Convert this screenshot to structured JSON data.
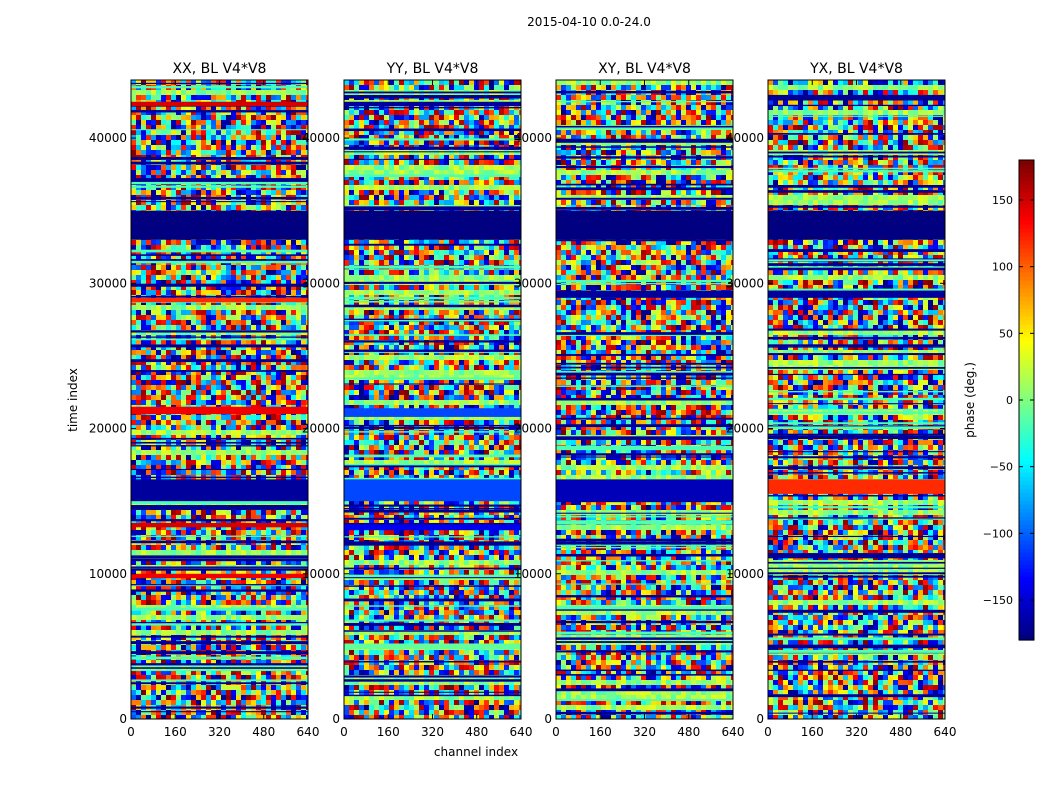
{
  "chart_data": {
    "type": "heatmap",
    "suptitle": "2015-04-10 0.0-24.0",
    "xlabel": "channel index",
    "ylabel": "time index",
    "xlim": [
      0,
      640
    ],
    "ylim": [
      0,
      44000
    ],
    "xticks": [
      0,
      160,
      320,
      480,
      640
    ],
    "yticks": [
      0,
      10000,
      20000,
      30000,
      40000
    ],
    "colorbar": {
      "label": "phase (deg.)",
      "range": [
        -180,
        180
      ],
      "ticks": [
        -150,
        -100,
        -50,
        0,
        50,
        100,
        150
      ],
      "tick_labels": [
        "−150",
        "−100",
        "−50",
        "0",
        "50",
        "100",
        "150"
      ],
      "colormap": "jet"
    },
    "panels": [
      {
        "title": "XX, BL V4*V8",
        "band_phases": [
          {
            "t0": 33000,
            "t1": 35000,
            "phase": -180
          },
          {
            "t0": 21500,
            "t1": 21000,
            "phase": 140
          },
          {
            "t0": 15000,
            "t1": 16500,
            "phase": -170
          },
          {
            "t0": 13200,
            "t1": 13500,
            "phase": 150
          },
          {
            "t0": 9700,
            "t1": 10000,
            "phase": 140
          },
          {
            "t0": 28700,
            "t1": 29000,
            "phase": 120
          },
          {
            "t0": 42200,
            "t1": 42500,
            "phase": 150
          }
        ]
      },
      {
        "title": "YY, BL V4*V8",
        "band_phases": [
          {
            "t0": 33000,
            "t1": 35000,
            "phase": -180
          },
          {
            "t0": 15000,
            "t1": 16500,
            "phase": -110
          },
          {
            "t0": 20800,
            "t1": 21400,
            "phase": -110
          },
          {
            "t0": 13000,
            "t1": 13400,
            "phase": -140
          },
          {
            "t0": 4800,
            "t1": 5200,
            "phase": -10
          },
          {
            "t0": 42200,
            "t1": 42500,
            "phase": -170
          }
        ]
      },
      {
        "title": "XY, BL V4*V8",
        "band_phases": [
          {
            "t0": 33000,
            "t1": 35000,
            "phase": -180
          },
          {
            "t0": 29000,
            "t1": 29500,
            "phase": -170
          },
          {
            "t0": 15000,
            "t1": 16500,
            "phase": -160
          }
        ]
      },
      {
        "title": "YX, BL V4*V8",
        "band_phases": [
          {
            "t0": 33000,
            "t1": 35000,
            "phase": -180
          },
          {
            "t0": 29000,
            "t1": 29500,
            "phase": -170
          },
          {
            "t0": 15500,
            "t1": 16500,
            "phase": 120
          }
        ]
      }
    ]
  }
}
